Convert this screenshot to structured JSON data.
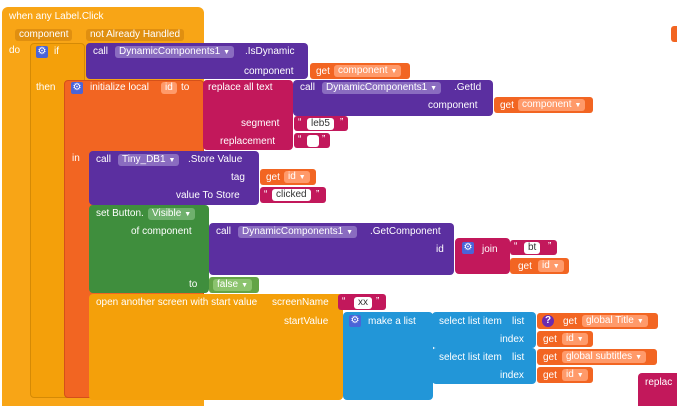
{
  "event": {
    "title": "when any Label.Click",
    "param_component": "component",
    "param_not_handled": "not Already Handled",
    "do_label": "do"
  },
  "if_block": {
    "if_label": "if",
    "then_label": "then",
    "call_label": "call",
    "dynamic_selector": "DynamicComponents1",
    "method": ".IsDynamic",
    "component_label": "component",
    "get_label": "get",
    "get_value": "component"
  },
  "local_var": {
    "init_label": "initialize local",
    "var_name": "id",
    "to_label": "to",
    "in_label": "in",
    "replace_label": "replace all text",
    "call_label": "call",
    "dynamic_selector": "DynamicComponents1",
    "method": ".GetId",
    "component_label": "component",
    "get_label": "get",
    "get_value": "component",
    "segment_label": "segment",
    "segment_value": "leb5",
    "replacement_label": "replacement",
    "replacement_value": " "
  },
  "tinydb": {
    "call_label": "call",
    "selector": "Tiny_DB1",
    "method": ".Store Value",
    "tag_label": "tag",
    "get_label": "get",
    "tag_value": "id",
    "value_label": "value To Store",
    "value_value": "clicked"
  },
  "set_button": {
    "set_label": "set Button.",
    "property": "Visible",
    "of_component_label": "of component",
    "call_label": "call",
    "dynamic_selector": "DynamicComponents1",
    "method": ".GetComponent",
    "id_label": "id",
    "join_label": "join",
    "join_first": "bt",
    "get_label": "get",
    "join_second": "id",
    "to_label": "to",
    "to_value": "false"
  },
  "open_screen": {
    "label": "open another screen with start value",
    "screen_name_label": "screenName",
    "screen_name_value": "xx",
    "start_value_label": "startValue",
    "make_list_label": "make a list",
    "select1_label": "select list item",
    "list_label": "list",
    "get_label": "get",
    "select1_list_value": "global Title",
    "index_label": "index",
    "select1_index_value": "id",
    "select2_label": "select list item",
    "select2_list_value": "global subtitles",
    "select2_index_value": "id"
  },
  "stray": {
    "replace_partial": "replac"
  },
  "colors": {
    "event": "#f8a516",
    "control": "#f4a00a",
    "variable": "#f26522",
    "component": "#5b2fa0",
    "text": "#c2185b",
    "setter": "#3f8e3d",
    "list": "#2296d8",
    "logic": "#63a446"
  }
}
